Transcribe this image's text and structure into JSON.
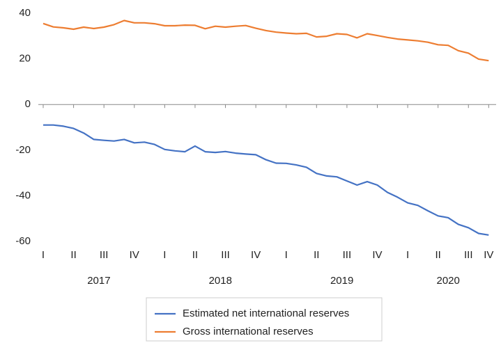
{
  "chart_data": {
    "type": "line",
    "categories": [
      "I",
      null,
      null,
      "II",
      null,
      null,
      "III",
      null,
      null,
      "IV",
      null,
      null,
      "I",
      null,
      null,
      "II",
      null,
      null,
      "III",
      null,
      null,
      "IV",
      null,
      null,
      "I",
      null,
      null,
      "II",
      null,
      null,
      "III",
      null,
      null,
      "IV",
      null,
      null,
      "I",
      null,
      null,
      "II",
      null,
      null,
      "III",
      null,
      "IV"
    ],
    "groups": [
      {
        "label": "2017",
        "start": 0,
        "end": 11
      },
      {
        "label": "2018",
        "start": 12,
        "end": 23
      },
      {
        "label": "2019",
        "start": 24,
        "end": 35
      },
      {
        "label": "2020",
        "start": 36,
        "end": 44
      }
    ],
    "series": [
      {
        "name": "Estimated net international reserves",
        "color": "#4472c4",
        "values": [
          -9,
          -9,
          -9.5,
          -10.5,
          -12.5,
          -15.3,
          -15.7,
          -16,
          -15.3,
          -16.8,
          -16.5,
          -17.5,
          -19.7,
          -20.3,
          -20.7,
          -18.2,
          -20.7,
          -21,
          -20.6,
          -21.3,
          -21.7,
          -22,
          -24.2,
          -25.7,
          -25.8,
          -26.5,
          -27.5,
          -30.2,
          -31.3,
          -31.7,
          -33.5,
          -35.3,
          -33.8,
          -35.3,
          -38.5,
          -40.6,
          -43.1,
          -44.2,
          -46.6,
          -48.8,
          -49.6,
          -52.5,
          -54,
          -56.5,
          -57.2
        ]
      },
      {
        "name": "Gross international reserves",
        "color": "#ed7d31",
        "values": [
          35.5,
          34,
          33.6,
          33,
          33.9,
          33.3,
          33.9,
          35,
          36.8,
          35.8,
          35.8,
          35.4,
          34.5,
          34.5,
          34.8,
          34.7,
          33.2,
          34.3,
          33.9,
          34.3,
          34.6,
          33.4,
          32.4,
          31.7,
          31.3,
          31,
          31.2,
          29.6,
          29.9,
          31,
          30.7,
          29.2,
          31,
          30.2,
          29.4,
          28.7,
          28.3,
          27.9,
          27.3,
          26.2,
          25.9,
          23.6,
          22.5,
          19.9,
          19.2
        ]
      }
    ],
    "ylim": [
      -60,
      40
    ],
    "yticks": [
      40,
      20,
      0,
      -20,
      -40,
      -60
    ],
    "grid": false,
    "legend": "bottom"
  }
}
